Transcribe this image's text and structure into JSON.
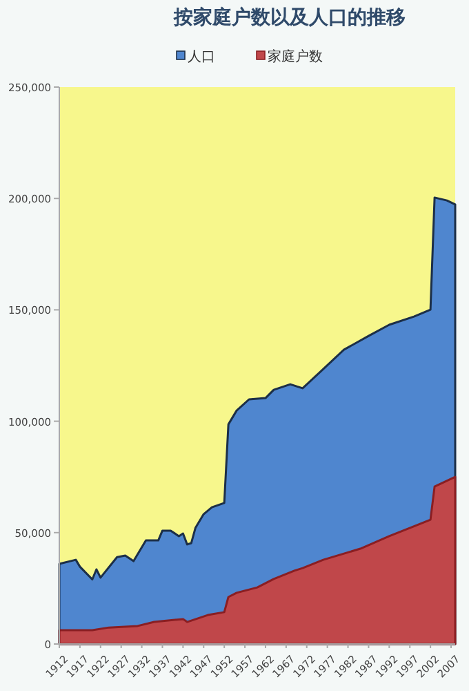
{
  "chart_data": {
    "type": "area",
    "title": "按家庭户数以及人口的推移",
    "legend": "top",
    "grid": false,
    "series": [
      {
        "name": "人口",
        "color": "#4f86cf",
        "x": [
          1912,
          1916,
          1917,
          1920,
          1921,
          1922,
          1926,
          1928,
          1930,
          1933,
          1936,
          1937,
          1939,
          1941,
          1942,
          1943,
          1944,
          1945,
          1947,
          1949,
          1952,
          1953,
          1955,
          1958,
          1962,
          1964,
          1968,
          1971,
          1976,
          1981,
          1987,
          1992,
          1998,
          2002,
          2003,
          2006,
          2008
        ],
        "values": [
          36000,
          37800,
          34700,
          29000,
          33500,
          29800,
          39000,
          39700,
          37200,
          46500,
          46500,
          50900,
          50900,
          48400,
          49600,
          44700,
          45300,
          52100,
          58300,
          61400,
          63300,
          98600,
          104800,
          109800,
          110400,
          114100,
          116600,
          114800,
          123400,
          132100,
          138300,
          143300,
          147000,
          150100,
          200400,
          199100,
          197300
        ]
      },
      {
        "name": "家庭户数",
        "color": "#c0474a",
        "x": [
          1912,
          1920,
          1924,
          1931,
          1935,
          1942,
          1943,
          1948,
          1952,
          1953,
          1955,
          1960,
          1964,
          1969,
          1971,
          1976,
          1985,
          1992,
          2002,
          2003,
          2008
        ],
        "values": [
          6200,
          6200,
          7400,
          8100,
          9900,
          11200,
          9900,
          13000,
          14300,
          21100,
          23000,
          25400,
          29200,
          32900,
          34100,
          37800,
          42800,
          48400,
          55800,
          70700,
          75000
        ]
      }
    ],
    "xlim": [
      1912,
      2008
    ],
    "xticks": [
      1912,
      1917,
      1922,
      1927,
      1932,
      1937,
      1942,
      1947,
      1952,
      1957,
      1962,
      1967,
      1972,
      1977,
      1982,
      1987,
      1992,
      1997,
      2002,
      2007
    ],
    "ylim": [
      0,
      250000
    ],
    "yticks": [
      {
        "value": 0,
        "label": "0"
      },
      {
        "value": 50000,
        "label": "50,000"
      },
      {
        "value": 100000,
        "label": "100,000"
      },
      {
        "value": 150000,
        "label": "150,000"
      },
      {
        "value": 200000,
        "label": "200,000"
      },
      {
        "value": 250000,
        "label": "250,000"
      }
    ]
  }
}
